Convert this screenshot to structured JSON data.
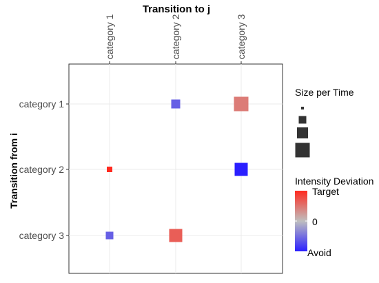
{
  "chart_data": {
    "type": "heatmap",
    "title": "Transition to j",
    "xlabel": "Transition to j",
    "ylabel": "Transition from i",
    "x_categories": [
      "category 1",
      "category 2",
      "category 3"
    ],
    "y_categories": [
      "category 1",
      "category 2",
      "category 3"
    ],
    "points": [
      {
        "from": "category 1",
        "to": "category 2",
        "size": 0.55,
        "intensity": -0.6
      },
      {
        "from": "category 1",
        "to": "category 3",
        "size": 0.95,
        "intensity": 0.45
      },
      {
        "from": "category 2",
        "to": "category 1",
        "size": 0.3,
        "intensity": 1.0
      },
      {
        "from": "category 2",
        "to": "category 3",
        "size": 0.85,
        "intensity": -1.0
      },
      {
        "from": "category 3",
        "to": "category 1",
        "size": 0.45,
        "intensity": -0.6
      },
      {
        "from": "category 3",
        "to": "category 2",
        "size": 0.85,
        "intensity": 0.65
      }
    ],
    "grid": true,
    "legend": {
      "position": "right",
      "size_title": "Size per Time",
      "size_steps": [
        0.1,
        0.45,
        0.7,
        0.95
      ],
      "color_title": "Intensity Deviation",
      "color_labels": {
        "high": "Target",
        "mid": "0",
        "low": "Avoid"
      },
      "colors": {
        "high": "#ff2a1f",
        "mid": "#bfbfbf",
        "low": "#2a1fff"
      }
    }
  }
}
